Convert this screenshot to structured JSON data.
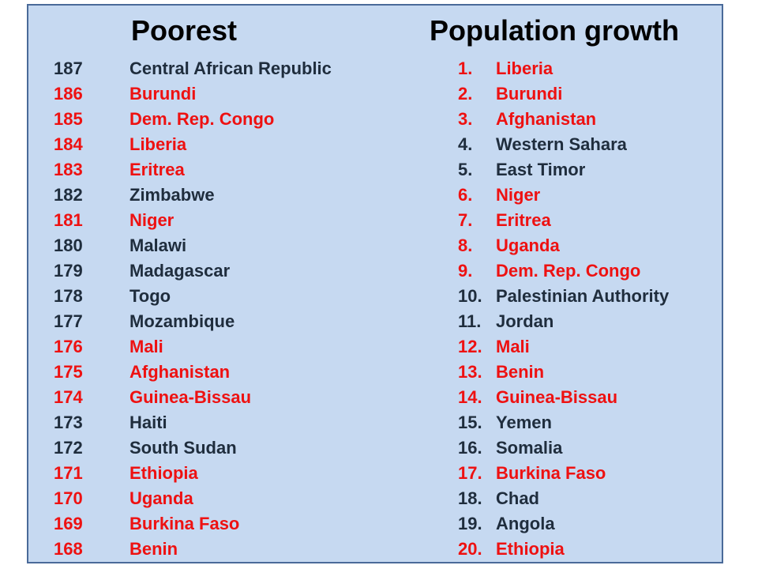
{
  "poorest": {
    "title": "Poorest",
    "rows": [
      {
        "rank": "187",
        "name": "Central African Republic",
        "highlight": false
      },
      {
        "rank": "186",
        "name": "Burundi",
        "highlight": true
      },
      {
        "rank": "185",
        "name": "Dem. Rep. Congo",
        "highlight": true
      },
      {
        "rank": "184",
        "name": "Liberia",
        "highlight": true
      },
      {
        "rank": "183",
        "name": "Eritrea",
        "highlight": true
      },
      {
        "rank": "182",
        "name": "Zimbabwe",
        "highlight": false
      },
      {
        "rank": "181",
        "name": "Niger",
        "highlight": true
      },
      {
        "rank": "180",
        "name": "Malawi",
        "highlight": false
      },
      {
        "rank": "179",
        "name": "Madagascar",
        "highlight": false
      },
      {
        "rank": "178",
        "name": "Togo",
        "highlight": false
      },
      {
        "rank": "177",
        "name": "Mozambique",
        "highlight": false
      },
      {
        "rank": "176",
        "name": "Mali",
        "highlight": true
      },
      {
        "rank": "175",
        "name": "Afghanistan",
        "highlight": true
      },
      {
        "rank": "174",
        "name": "Guinea-Bissau",
        "highlight": true
      },
      {
        "rank": "173",
        "name": "Haiti",
        "highlight": false
      },
      {
        "rank": "172",
        "name": "South Sudan",
        "highlight": false
      },
      {
        "rank": "171",
        "name": "Ethiopia",
        "highlight": true
      },
      {
        "rank": "170",
        "name": "Uganda",
        "highlight": true
      },
      {
        "rank": "169",
        "name": "Burkina Faso",
        "highlight": true
      },
      {
        "rank": "168",
        "name": "Benin",
        "highlight": true
      }
    ]
  },
  "growth": {
    "title": "Population growth",
    "rows": [
      {
        "rank": "1.",
        "name": "Liberia",
        "highlight": true
      },
      {
        "rank": "2.",
        "name": "Burundi",
        "highlight": true
      },
      {
        "rank": "3.",
        "name": "Afghanistan",
        "highlight": true
      },
      {
        "rank": "4.",
        "name": "Western Sahara",
        "highlight": false
      },
      {
        "rank": "5.",
        "name": "East Timor",
        "highlight": false
      },
      {
        "rank": "6.",
        "name": "Niger",
        "highlight": true
      },
      {
        "rank": "7.",
        "name": "Eritrea",
        "highlight": true
      },
      {
        "rank": "8.",
        "name": "Uganda",
        "highlight": true
      },
      {
        "rank": "9.",
        "name": "Dem. Rep. Congo",
        "highlight": true
      },
      {
        "rank": "10.",
        "name": "Palestinian Authority",
        "highlight": false
      },
      {
        "rank": "11.",
        "name": "Jordan",
        "highlight": false
      },
      {
        "rank": "12.",
        "name": "Mali",
        "highlight": true
      },
      {
        "rank": "13.",
        "name": "Benin",
        "highlight": true
      },
      {
        "rank": "14.",
        "name": "Guinea-Bissau",
        "highlight": true
      },
      {
        "rank": "15.",
        "name": "Yemen",
        "highlight": false
      },
      {
        "rank": "16.",
        "name": "Somalia",
        "highlight": false
      },
      {
        "rank": "17.",
        "name": "Burkina Faso",
        "highlight": true
      },
      {
        "rank": "18.",
        "name": "Chad",
        "highlight": false
      },
      {
        "rank": "19.",
        "name": "Angola",
        "highlight": false
      },
      {
        "rank": "20.",
        "name": "Ethiopia",
        "highlight": true
      }
    ]
  },
  "colors": {
    "panel": "#c6d9f1",
    "border": "#4a6a99",
    "normal_text": "#1f2d3d",
    "highlight_text": "#ee1111"
  }
}
